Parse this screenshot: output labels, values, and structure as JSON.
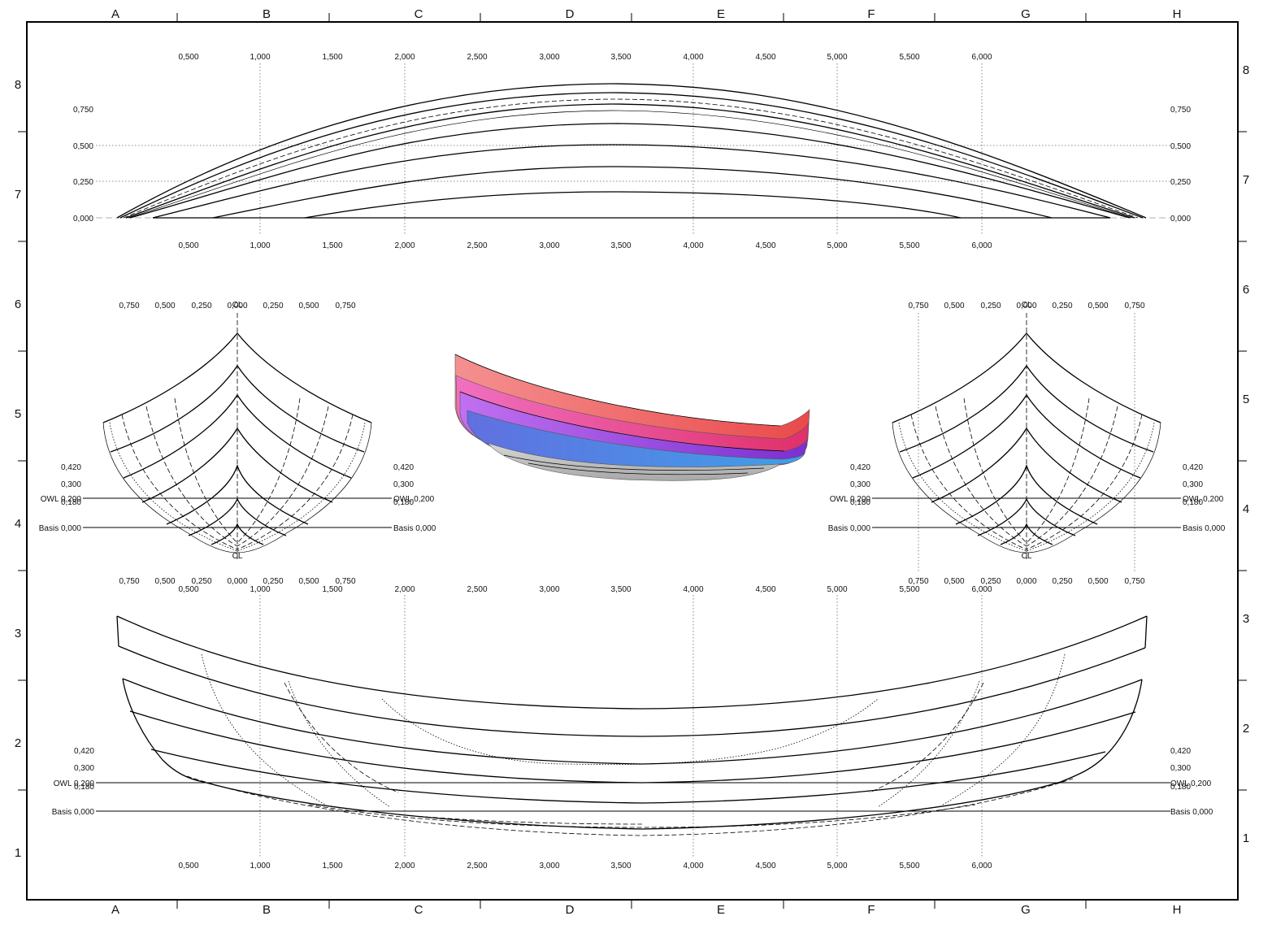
{
  "sheet": {
    "column_labels": [
      "A",
      "B",
      "C",
      "D",
      "E",
      "F",
      "G",
      "H"
    ],
    "row_labels": [
      "8",
      "7",
      "6",
      "5",
      "4",
      "3",
      "2",
      "1"
    ]
  },
  "longitudinal_scale": [
    "0,500",
    "1,000",
    "1,500",
    "2,000",
    "2,500",
    "3,000",
    "3,500",
    "4,000",
    "4,500",
    "5,000",
    "5,500",
    "6,000"
  ],
  "half_breadth_view": {
    "offsets": [
      "0,750",
      "0,500",
      "0,250",
      "0,000"
    ]
  },
  "body_plan_scale": [
    "0,750",
    "0,500",
    "0,250",
    "0,000",
    "0,250",
    "0,500",
    "0,750"
  ],
  "centerline_label": "CL",
  "waterlines": {
    "wl_420": "0,420",
    "wl_300": "0,300",
    "owl": "OWL 0,200",
    "wl_180": "0,180",
    "basis": "Basis 0,000"
  },
  "colors": {
    "render_top": "#f28080",
    "render_mid": "#e0407a",
    "render_violet": "#8a3cd8",
    "render_blue": "#3aa0e8",
    "render_hull_bottom": "#c0c0c0"
  }
}
